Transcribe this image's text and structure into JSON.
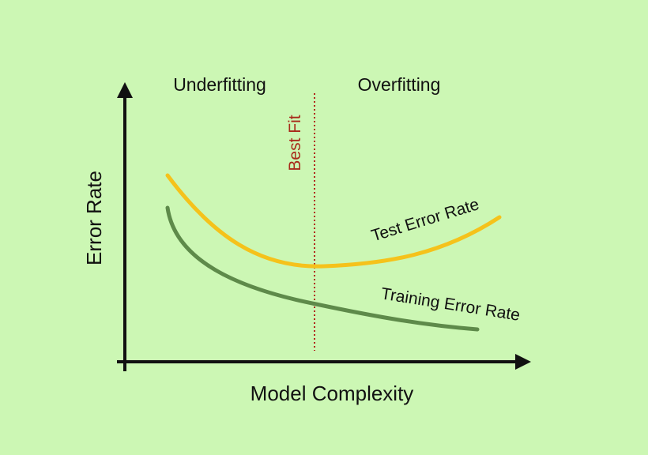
{
  "labels": {
    "y_axis": "Error Rate",
    "x_axis": "Model Complexity",
    "region_left": "Underfitting",
    "region_right": "Overfitting",
    "best_fit": "Best Fit",
    "test_curve": "Test Error Rate",
    "training_curve": "Training Error Rate"
  },
  "colors": {
    "background": "#ccf7b4",
    "axis": "#111111",
    "test_curve": "#f5c21b",
    "training_curve": "#5e8a4a",
    "best_fit_line": "#b0271c",
    "best_fit_text": "#a82a1a",
    "text": "#111111"
  }
}
